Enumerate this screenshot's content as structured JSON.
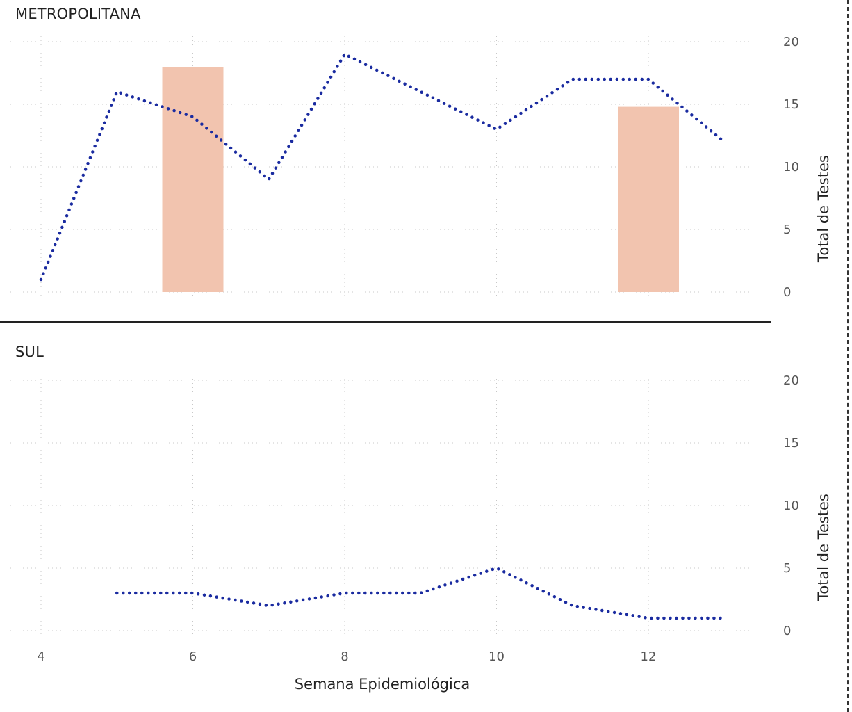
{
  "chart_data": [
    {
      "type": "line",
      "panel_label": "METROPOLITANA",
      "ylabel": "Total de Testes",
      "xlim": [
        4,
        13
      ],
      "ylim": [
        0,
        20
      ],
      "x_ticks": [
        4,
        6,
        8,
        10,
        12
      ],
      "y_ticks": [
        0,
        5,
        10,
        15,
        20
      ],
      "grid": true,
      "bars": [
        {
          "x": 6,
          "value": 18
        },
        {
          "x": 12,
          "value": 14.8
        }
      ],
      "series": [
        {
          "x": [
            4,
            5,
            6,
            7,
            8,
            9,
            10,
            11,
            12,
            13
          ],
          "values": [
            1,
            16,
            14,
            9,
            19,
            16,
            13,
            17,
            17,
            12
          ]
        }
      ]
    },
    {
      "type": "line",
      "panel_label": "SUL",
      "ylabel": "Total de Testes",
      "xlim": [
        4,
        13
      ],
      "ylim": [
        0,
        20
      ],
      "x_ticks": [
        4,
        6,
        8,
        10,
        12
      ],
      "y_ticks": [
        0,
        5,
        10,
        15,
        20
      ],
      "grid": true,
      "bars": [],
      "series": [
        {
          "x": [
            5,
            6,
            7,
            8,
            9,
            10,
            11,
            12,
            13
          ],
          "values": [
            3,
            3,
            2,
            3,
            3,
            5,
            2,
            1,
            1
          ]
        }
      ]
    }
  ],
  "xlabel": "Semana Epidemiológica",
  "colors": {
    "line": "#1a2ba0",
    "bar": "#f2c4af",
    "grid": "#c8c8c8"
  }
}
